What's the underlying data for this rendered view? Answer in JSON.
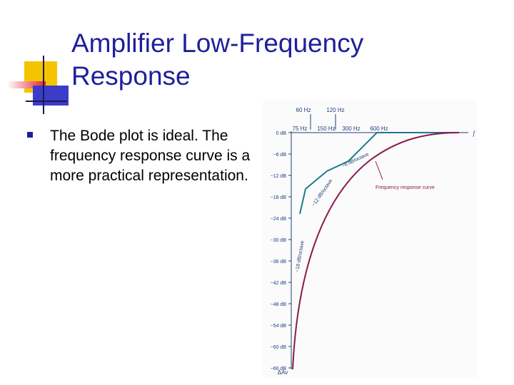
{
  "slide": {
    "title": "Amplifier Low-Frequency Response",
    "bullet": "The Bode plot is ideal. The frequency response curve is a more practical representation."
  },
  "figure": {
    "top_freq_labels": [
      "60 Hz",
      "120 Hz"
    ],
    "axis_freq_labels": [
      "75 Hz",
      "150 Hz",
      "300 Hz",
      "600 Hz"
    ],
    "freq_axis_symbol": "f",
    "db_ticks": [
      "0 dB",
      "−6 dB",
      "−12 dB",
      "−18 dB",
      "−24 dB",
      "−30 dB",
      "−36 dB",
      "−42 dB",
      "−48 dB",
      "−54 dB",
      "−60 dB",
      "−66 dB"
    ],
    "y_axis_label": "ΔAv",
    "annotations": {
      "slope_6": "−6 dB/octave",
      "slope_12": "−12 dB/octave",
      "slope_18": "−18 dB/octave",
      "response": "Frequency response curve"
    },
    "colors": {
      "bode": "#1f7a8c",
      "response": "#8b1a4a",
      "text": "#1f3f7a"
    }
  },
  "decor": {
    "colors": {
      "yellow": "#f5c400",
      "red": "#e8202a",
      "blue": "#3c3cc8",
      "dark": "#1a1a50"
    }
  }
}
